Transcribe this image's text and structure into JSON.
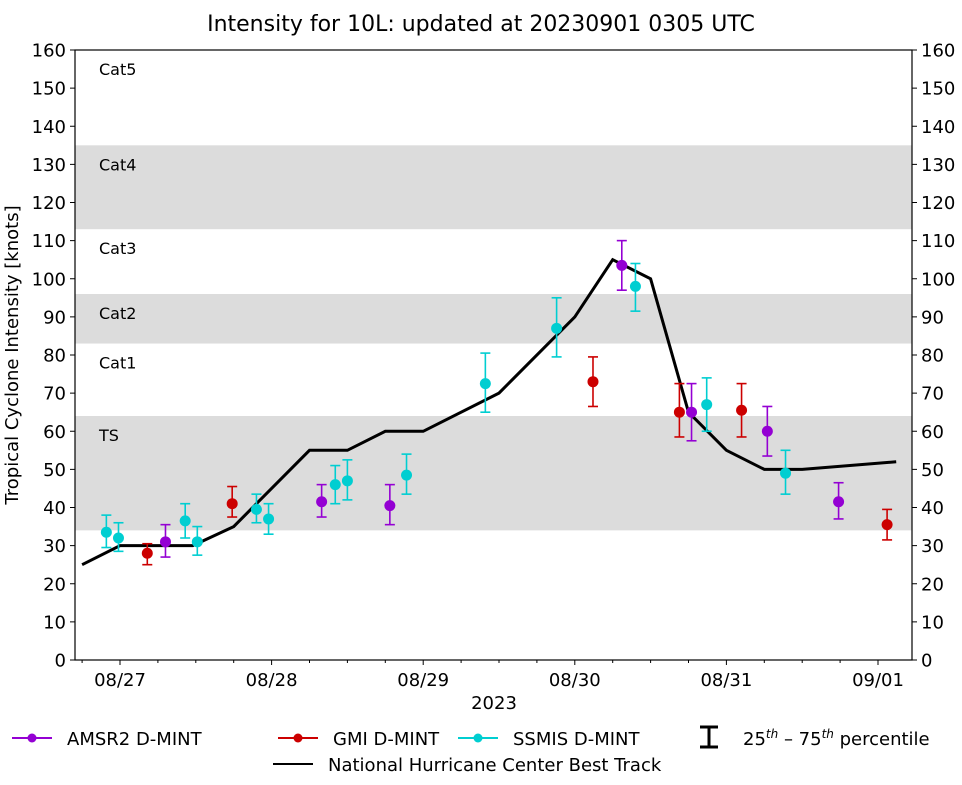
{
  "chart_data": {
    "type": "scatter",
    "title": "Intensity for 10L: updated at 20230901 0305 UTC",
    "xlabel": "2023",
    "ylabel": "Tropical Cyclone Intensity [knots]",
    "ylim": [
      0,
      160
    ],
    "yticks": [
      0,
      10,
      20,
      30,
      40,
      50,
      60,
      70,
      80,
      90,
      100,
      110,
      120,
      130,
      140,
      150,
      160
    ],
    "x_units": "days since 2023-08-27 00 UTC",
    "xlim": [
      -0.3,
      5.22
    ],
    "xticks": [
      {
        "x": 0,
        "label": "08/27"
      },
      {
        "x": 1,
        "label": "08/28"
      },
      {
        "x": 2,
        "label": "08/29"
      },
      {
        "x": 3,
        "label": "08/30"
      },
      {
        "x": 4,
        "label": "08/31"
      },
      {
        "x": 5,
        "label": "09/01"
      }
    ],
    "minor_tick_step_days": 0.25,
    "grid": false,
    "category_bands": [
      {
        "label": "TS",
        "from": 34,
        "to": 64,
        "shaded": true
      },
      {
        "label": "Cat1",
        "from": 64,
        "to": 83,
        "shaded": false
      },
      {
        "label": "Cat2",
        "from": 83,
        "to": 96,
        "shaded": true
      },
      {
        "label": "Cat3",
        "from": 96,
        "to": 113,
        "shaded": false
      },
      {
        "label": "Cat4",
        "from": 113,
        "to": 135,
        "shaded": true
      },
      {
        "label": "Cat5",
        "from": 135,
        "to": 160,
        "shaded": false
      }
    ],
    "band_color": "#dcdcdc",
    "series": [
      {
        "name": "AMSR2 D-MINT",
        "color": "#9400d3",
        "points": [
          {
            "x": 0.3,
            "y": 31,
            "p25": 27,
            "p75": 35.5
          },
          {
            "x": 1.33,
            "y": 41.5,
            "p25": 37.5,
            "p75": 46
          },
          {
            "x": 1.78,
            "y": 40.5,
            "p25": 35.5,
            "p75": 46
          },
          {
            "x": 3.31,
            "y": 103.5,
            "p25": 97,
            "p75": 110
          },
          {
            "x": 3.77,
            "y": 65,
            "p25": 57.5,
            "p75": 72.5
          },
          {
            "x": 4.27,
            "y": 60,
            "p25": 53.5,
            "p75": 66.5
          },
          {
            "x": 4.74,
            "y": 41.5,
            "p25": 37,
            "p75": 46.5
          }
        ]
      },
      {
        "name": "GMI D-MINT",
        "color": "#cc0000",
        "points": [
          {
            "x": 0.18,
            "y": 28,
            "p25": 25,
            "p75": 30.5
          },
          {
            "x": 0.74,
            "y": 41,
            "p25": 37.5,
            "p75": 45.5
          },
          {
            "x": 3.12,
            "y": 73,
            "p25": 66.5,
            "p75": 79.5
          },
          {
            "x": 3.69,
            "y": 65,
            "p25": 58.5,
            "p75": 72.5
          },
          {
            "x": 4.1,
            "y": 65.5,
            "p25": 58.5,
            "p75": 72.5
          },
          {
            "x": 5.06,
            "y": 35.5,
            "p25": 31.5,
            "p75": 39.5
          }
        ]
      },
      {
        "name": "SSMIS D-MINT",
        "color": "#00ced1",
        "points": [
          {
            "x": -0.09,
            "y": 33.5,
            "p25": 29.5,
            "p75": 38
          },
          {
            "x": -0.01,
            "y": 32,
            "p25": 28.5,
            "p75": 36
          },
          {
            "x": 0.43,
            "y": 36.5,
            "p25": 32,
            "p75": 41
          },
          {
            "x": 0.51,
            "y": 31,
            "p25": 27.5,
            "p75": 35
          },
          {
            "x": 0.9,
            "y": 39.5,
            "p25": 36,
            "p75": 43.5
          },
          {
            "x": 0.98,
            "y": 37,
            "p25": 33,
            "p75": 41
          },
          {
            "x": 1.42,
            "y": 46,
            "p25": 41,
            "p75": 51
          },
          {
            "x": 1.5,
            "y": 47,
            "p25": 42,
            "p75": 52.5
          },
          {
            "x": 1.89,
            "y": 48.5,
            "p25": 43.5,
            "p75": 54
          },
          {
            "x": 2.41,
            "y": 72.5,
            "p25": 65,
            "p75": 80.5
          },
          {
            "x": 2.88,
            "y": 87,
            "p25": 79.5,
            "p75": 95
          },
          {
            "x": 3.4,
            "y": 98,
            "p25": 91.5,
            "p75": 104
          },
          {
            "x": 3.87,
            "y": 67,
            "p25": 60,
            "p75": 74
          },
          {
            "x": 4.39,
            "y": 49,
            "p25": 43.5,
            "p75": 55
          }
        ]
      }
    ],
    "best_track": {
      "name": "National Hurricane Center Best Track",
      "color": "#000000",
      "points": [
        {
          "x": -0.25,
          "y": 25
        },
        {
          "x": 0.0,
          "y": 30
        },
        {
          "x": 0.48,
          "y": 30
        },
        {
          "x": 0.75,
          "y": 35
        },
        {
          "x": 1.25,
          "y": 55
        },
        {
          "x": 1.5,
          "y": 55
        },
        {
          "x": 1.75,
          "y": 60
        },
        {
          "x": 2.0,
          "y": 60
        },
        {
          "x": 2.5,
          "y": 70
        },
        {
          "x": 3.0,
          "y": 90
        },
        {
          "x": 3.25,
          "y": 105
        },
        {
          "x": 3.5,
          "y": 100
        },
        {
          "x": 3.75,
          "y": 65
        },
        {
          "x": 4.0,
          "y": 55
        },
        {
          "x": 4.25,
          "y": 50
        },
        {
          "x": 4.5,
          "y": 50
        },
        {
          "x": 5.12,
          "y": 52
        }
      ]
    },
    "legend": {
      "placement": "bottom",
      "entries": [
        "AMSR2 D-MINT",
        "GMI D-MINT",
        "SSMIS D-MINT",
        "25th – 75th percentile",
        "National Hurricane Center Best Track"
      ],
      "percentile_label_parts": {
        "a": "25",
        "a_sup": "th",
        "dash": " – ",
        "b": "75",
        "b_sup": "th",
        "rest": " percentile"
      }
    }
  }
}
